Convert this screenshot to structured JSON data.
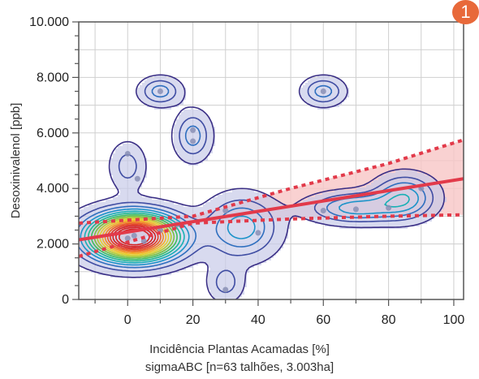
{
  "badge": {
    "number": "1",
    "color": "#e8693a"
  },
  "chart_data": {
    "type": "scatter",
    "subtype": "kde-contour-with-regression",
    "xlabel": "Incidência Plantas Acamadas [%]",
    "subtitle": "sigmaABC [n=63 talhões, 3.003ha]",
    "ylabel": "Desoxinivalenol [ppb]",
    "xlim": [
      -15,
      103
    ],
    "ylim": [
      0,
      10000
    ],
    "x_ticks": [
      0,
      20,
      40,
      60,
      80,
      100
    ],
    "y_ticks": [
      0,
      2000,
      4000,
      6000,
      8000,
      10000
    ],
    "y_tick_labels": [
      "0",
      "2.000",
      "4.000",
      "6.000",
      "8.000",
      "10.000"
    ],
    "grid": true,
    "points": [
      {
        "x": 0,
        "y": 5250
      },
      {
        "x": 3,
        "y": 4350
      },
      {
        "x": 10,
        "y": 7500
      },
      {
        "x": 20,
        "y": 6100
      },
      {
        "x": 20,
        "y": 5700
      },
      {
        "x": 60,
        "y": 7500
      },
      {
        "x": 30,
        "y": 350
      },
      {
        "x": 0,
        "y": 2200
      },
      {
        "x": 2,
        "y": 2300
      },
      {
        "x": 5,
        "y": 2100
      },
      {
        "x": 10,
        "y": 2500
      },
      {
        "x": 15,
        "y": 2700
      },
      {
        "x": 30,
        "y": 3200
      },
      {
        "x": 40,
        "y": 2400
      },
      {
        "x": 60,
        "y": 3200
      },
      {
        "x": 70,
        "y": 3250
      },
      {
        "x": 80,
        "y": 3300
      },
      {
        "x": 90,
        "y": 4000
      }
    ],
    "regression": {
      "x0": -15,
      "y0": 2150,
      "x1": 103,
      "y1": 4350,
      "color": "#e23a4a"
    },
    "confidence_band": {
      "upper": [
        {
          "x": -15,
          "y": 2750
        },
        {
          "x": 20,
          "y": 3000
        },
        {
          "x": 50,
          "y": 4000
        },
        {
          "x": 80,
          "y": 4900
        },
        {
          "x": 103,
          "y": 5750
        }
      ],
      "lower": [
        {
          "x": -15,
          "y": 1550
        },
        {
          "x": 20,
          "y": 2750
        },
        {
          "x": 50,
          "y": 2900
        },
        {
          "x": 80,
          "y": 3000
        },
        {
          "x": 103,
          "y": 3050
        }
      ],
      "color": "#f7c5c5"
    },
    "density_peaks": [
      {
        "x": 2,
        "y": 2250,
        "levels": 18,
        "sx": 9,
        "sy": 550
      },
      {
        "x": 10,
        "y": 7500,
        "levels": 3,
        "sx": 4,
        "sy": 320
      },
      {
        "x": 60,
        "y": 7500,
        "levels": 3,
        "sx": 4,
        "sy": 320
      },
      {
        "x": 20,
        "y": 5900,
        "levels": 3,
        "sx": 3.5,
        "sy": 550
      },
      {
        "x": 0,
        "y": 4800,
        "levels": 2,
        "sx": 3.5,
        "sy": 550
      },
      {
        "x": 30,
        "y": 600,
        "levels": 2,
        "sx": 3.5,
        "sy": 450
      },
      {
        "x": 70,
        "y": 3300,
        "levels": 4,
        "sx": 9,
        "sy": 350
      },
      {
        "x": 85,
        "y": 3700,
        "levels": 4,
        "sx": 6,
        "sy": 500
      },
      {
        "x": 35,
        "y": 2600,
        "levels": 4,
        "sx": 7,
        "sy": 700
      }
    ],
    "contour_colors": [
      "#3a2f86",
      "#3f4da3",
      "#2f6fbf",
      "#1c93c9",
      "#18b0b5",
      "#1eb98f",
      "#3fbf5c",
      "#79c23f",
      "#b4cc2f",
      "#e5d12a",
      "#f4b528",
      "#f28a25",
      "#ec5c22",
      "#e33b21",
      "#d6201f"
    ]
  }
}
